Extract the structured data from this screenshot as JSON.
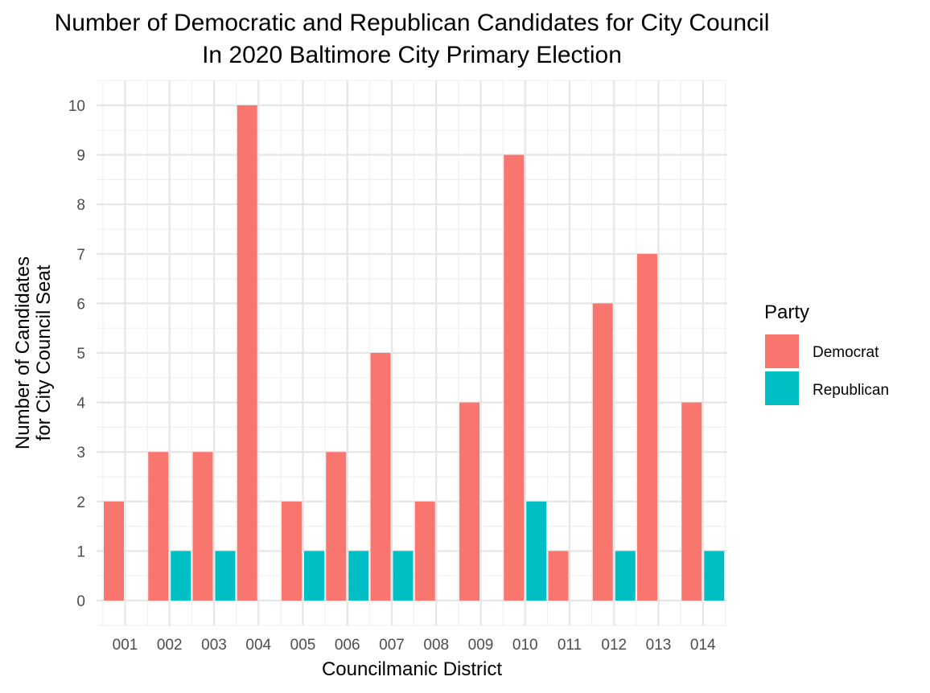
{
  "chart_data": {
    "type": "bar",
    "title_lines": [
      "Number of Democratic and Republican Candidates for City Council",
      "In 2020 Baltimore City Primary Election"
    ],
    "xlabel": "Councilmanic District",
    "ylabel_lines": [
      "Number of Candidates",
      "for City Council Seat"
    ],
    "categories": [
      "001",
      "002",
      "003",
      "004",
      "005",
      "006",
      "007",
      "008",
      "009",
      "010",
      "011",
      "012",
      "013",
      "014"
    ],
    "series": [
      {
        "name": "Democrat",
        "color": "#F8766D",
        "values": [
          2,
          3,
          3,
          10,
          2,
          3,
          5,
          2,
          4,
          9,
          1,
          6,
          7,
          4
        ]
      },
      {
        "name": "Republican",
        "color": "#00BFC4",
        "values": [
          0,
          1,
          1,
          0,
          1,
          1,
          1,
          0,
          0,
          2,
          0,
          1,
          0,
          1
        ]
      }
    ],
    "ylim": [
      0,
      10
    ],
    "yticks": [
      0,
      1,
      2,
      3,
      4,
      5,
      6,
      7,
      8,
      9,
      10
    ],
    "grid": true,
    "legend": {
      "title": "Party",
      "position": "right"
    }
  }
}
